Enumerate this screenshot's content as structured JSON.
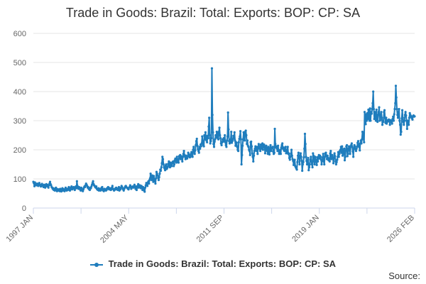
{
  "chart_data": {
    "type": "line",
    "title": "Trade in Goods: Brazil: Total: Exports: BOP: CP: SA",
    "xlabel": "",
    "ylabel": "",
    "ylim": [
      0,
      600
    ],
    "yticks": [
      0,
      100,
      200,
      300,
      400,
      500,
      600
    ],
    "xtick_labels": [
      "1997 JAN",
      "2004 MAY",
      "2011 SEP",
      "2019 JAN",
      "2026 FEB"
    ],
    "x_start": "1997 JAN",
    "x_end": "2026 FEB",
    "grid": true,
    "legend_position": "bottom",
    "color": "#1f7dbd",
    "series": [
      {
        "name": "Trade in Goods: Brazil: Total: Exports: BOP: CP: SA",
        "values": [
          90,
          85,
          75,
          88,
          80,
          82,
          78,
          84,
          80,
          76,
          82,
          86,
          80,
          77,
          74,
          79,
          83,
          78,
          75,
          72,
          80,
          76,
          70,
          78,
          82,
          75,
          80,
          74,
          70,
          78,
          84,
          90,
          82,
          78,
          72,
          70,
          66,
          68,
          62,
          64,
          60,
          67,
          70,
          62,
          58,
          65,
          62,
          60,
          64,
          58,
          66,
          62,
          57,
          63,
          68,
          60,
          65,
          62,
          58,
          64,
          70,
          66,
          60,
          64,
          62,
          68,
          72,
          66,
          60,
          65,
          70,
          74,
          64,
          70,
          68,
          72,
          66,
          62,
          70,
          74,
          68,
          92,
          76,
          70,
          66,
          72,
          68,
          64,
          60,
          70,
          66,
          62,
          58,
          64,
          70,
          74,
          72,
          78,
          84,
          80,
          76,
          70,
          72,
          66,
          64,
          62,
          70,
          68,
          74,
          80,
          86,
          92,
          82,
          78,
          76,
          72,
          70,
          74,
          66,
          64,
          62,
          68,
          60,
          64,
          66,
          60,
          62,
          70,
          72,
          64,
          60,
          58,
          66,
          62,
          64,
          60,
          62,
          68,
          66,
          72,
          70,
          64,
          68,
          66,
          62,
          64,
          70,
          76,
          66,
          64,
          60,
          62,
          66,
          68,
          70,
          64,
          66,
          62,
          68,
          72,
          60,
          66,
          64,
          70,
          76,
          72,
          68,
          64,
          60,
          66,
          70,
          74,
          76,
          72,
          70,
          68,
          66,
          64,
          70,
          72,
          78,
          74,
          66,
          70,
          72,
          74,
          70,
          74,
          80,
          72,
          66,
          74,
          62,
          70,
          76,
          82,
          70,
          74,
          78,
          72,
          68,
          76,
          70,
          62,
          72,
          66,
          60,
          56,
          70,
          78,
          86,
          82,
          76,
          88,
          92,
          84,
          96,
          102,
          118,
          110,
          96,
          112,
          104,
          90,
          110,
          98,
          92,
          84,
          102,
          124,
          118,
          112,
          104,
          96,
          106,
          118,
          132,
          128,
          140,
          154,
          176,
          168,
          150,
          140,
          136,
          130,
          146,
          150,
          134,
          138,
          142,
          152,
          160,
          148,
          140,
          156,
          150,
          144,
          154,
          158,
          160,
          144,
          150,
          164,
          170,
          162,
          156,
          176,
          168,
          160,
          156,
          178,
          172,
          182,
          168,
          178,
          170,
          160,
          176,
          186,
          196,
          182,
          176,
          168,
          180,
          172,
          170,
          176,
          190,
          184,
          180,
          174,
          176,
          186,
          192,
          182,
          176,
          200,
          210,
          192,
          186,
          198,
          216,
          230,
          238,
          214,
          202,
          196,
          190,
          210,
          204,
          218,
          212,
          222,
          246,
          230,
          216,
          212,
          250,
          236,
          260,
          246,
          232,
          226,
          248,
          240,
          280,
          310,
          250,
          222,
          230,
          240,
          480,
          320,
          260,
          220,
          210,
          228,
          236,
          250,
          242,
          262,
          258,
          240,
          236,
          262,
          276,
          250,
          240,
          222,
          216,
          226,
          236,
          228,
          240,
          232,
          250,
          226,
          216,
          210,
          232,
          246,
          328,
          270,
          230,
          222,
          226,
          236,
          262,
          224,
          230,
          236,
          248,
          240,
          260,
          232,
          214,
          226,
          224,
          210,
          200,
          196,
          226,
          238,
          246,
          264,
          236,
          150,
          182,
          214,
          236,
          260,
          240,
          232,
          262,
          266,
          250,
          220,
          232,
          214,
          210,
          200,
          196,
          182,
          226,
          228,
          212,
          188,
          176,
          160,
          180,
          196,
          204,
          212,
          200,
          196,
          210,
          186,
          206,
          220,
          212,
          204,
          196,
          218,
          204,
          210,
          222,
          200,
          214,
          218,
          210,
          188,
          200,
          214,
          206,
          196,
          186,
          210,
          196,
          184,
          204,
          216,
          196,
          206,
          208,
          210,
          194,
          186,
          190,
          272,
          220,
          208,
          212,
          204,
          196,
          214,
          196,
          186,
          192,
          200,
          186,
          208,
          216,
          222,
          204,
          208,
          198,
          196,
          204,
          210,
          188,
          190,
          200,
          210,
          186,
          188,
          172,
          166,
          176,
          186,
          200,
          180,
          168,
          162,
          148,
          156,
          166,
          144,
          140,
          136,
          132,
          158,
          180,
          190,
          174,
          150,
          180,
          188,
          176,
          162,
          128,
          150,
          158,
          174,
          204,
          255,
          220,
          176,
          162,
          150,
          164,
          172,
          130,
          140,
          150,
          166,
          176,
          160,
          150,
          140,
          188,
          180,
          160,
          150,
          176,
          166,
          158,
          148,
          174,
          160,
          176,
          182,
          170,
          180,
          176,
          166,
          150,
          164,
          174,
          186,
          160,
          150,
          176,
          188,
          190,
          180,
          168,
          180,
          172,
          164,
          170,
          160,
          188,
          196,
          168,
          176,
          182,
          172,
          154,
          172,
          188,
          178,
          160,
          150,
          158,
          166,
          176,
          192,
          176,
          186,
          196,
          200,
          210,
          190,
          212,
          180,
          200,
          186,
          204,
          164,
          176,
          198,
          212,
          216,
          178,
          186,
          204,
          212,
          200,
          186,
          210,
          216,
          222,
          210,
          194,
          176,
          204,
          216,
          212,
          202,
          196,
          204,
          210,
          224,
          230,
          216,
          210,
          198,
          222,
          232,
          222,
          236,
          262,
          258,
          236,
          226,
          330,
          318,
          288,
          322,
          300,
          326,
          306,
          338,
          320,
          300,
          342,
          300,
          330,
          324,
          340,
          360,
          400,
          340,
          306,
          330,
          316,
          300,
          338,
          300,
          296,
          320,
          330,
          346,
          300,
          302,
          322,
          330,
          310,
          286,
          300,
          296,
          330,
          336,
          310,
          292,
          310,
          290,
          296,
          302,
          298,
          304,
          300,
          286,
          302,
          300,
          296,
          290,
          306,
          314,
          300,
          322,
          340,
          360,
          420,
          380,
          340,
          320,
          310,
          330,
          340,
          300,
          286,
          252,
          262,
          308,
          336,
          310,
          296,
          286,
          300,
          320,
          330,
          318,
          300,
          272,
          300,
          296,
          286,
          310,
          326,
          320,
          316,
          312,
          308,
          304,
          316,
          318,
          314,
          315
        ]
      }
    ]
  },
  "legend": {
    "label": "Trade in Goods: Brazil: Total: Exports: BOP: CP: SA"
  },
  "source": {
    "label": "Source:"
  }
}
